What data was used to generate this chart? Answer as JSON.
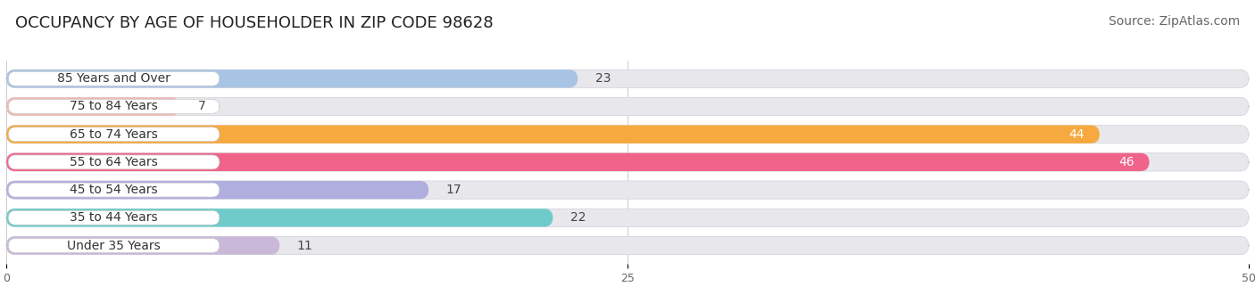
{
  "title": "OCCUPANCY BY AGE OF HOUSEHOLDER IN ZIP CODE 98628",
  "source": "Source: ZipAtlas.com",
  "categories": [
    "Under 35 Years",
    "35 to 44 Years",
    "45 to 54 Years",
    "55 to 64 Years",
    "65 to 74 Years",
    "75 to 84 Years",
    "85 Years and Over"
  ],
  "values": [
    11,
    22,
    17,
    46,
    44,
    7,
    23
  ],
  "bar_colors": [
    "#c9b8d8",
    "#6ecbc9",
    "#b0aede",
    "#f0648a",
    "#f5a93e",
    "#f0b8b4",
    "#a8c4e4"
  ],
  "bar_bg_color": "#e8e8ec",
  "xlim": [
    0,
    50
  ],
  "xticks": [
    0,
    25,
    50
  ],
  "title_fontsize": 13,
  "source_fontsize": 10,
  "label_fontsize": 10,
  "value_fontsize": 10,
  "bar_height": 0.65,
  "bg_color": "#ffffff"
}
